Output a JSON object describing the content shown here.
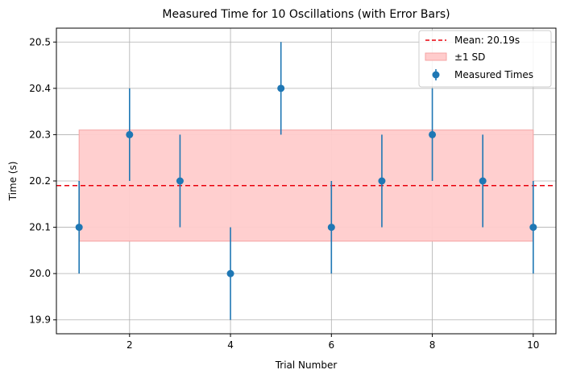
{
  "chart_data": {
    "type": "scatter",
    "title": "Measured Time for 10 Oscillations (with Error Bars)",
    "xlabel": "Trial Number",
    "ylabel": "Time (s)",
    "xlim": [
      0.55,
      10.45
    ],
    "ylim": [
      19.87,
      20.53
    ],
    "xticks": [
      2,
      4,
      6,
      8,
      10
    ],
    "yticks": [
      19.9,
      20.0,
      20.1,
      20.2,
      20.3,
      20.4,
      20.5
    ],
    "grid": true,
    "legend_position": "top-right",
    "series": [
      {
        "name": "Measured Times",
        "x": [
          1,
          2,
          3,
          4,
          5,
          6,
          7,
          8,
          9,
          10
        ],
        "y": [
          20.1,
          20.3,
          20.2,
          20.0,
          20.4,
          20.1,
          20.2,
          20.3,
          20.2,
          20.1
        ],
        "yerr": 0.1,
        "color": "#1f77b4"
      }
    ],
    "mean_line": {
      "label": "Mean: 20.19s",
      "value": 20.19,
      "color": "#e8000b"
    },
    "sd_band": {
      "label": "±1 SD",
      "lower": 20.07,
      "upper": 20.31,
      "x_range": [
        1,
        10
      ],
      "color": "#ffcccc"
    }
  }
}
